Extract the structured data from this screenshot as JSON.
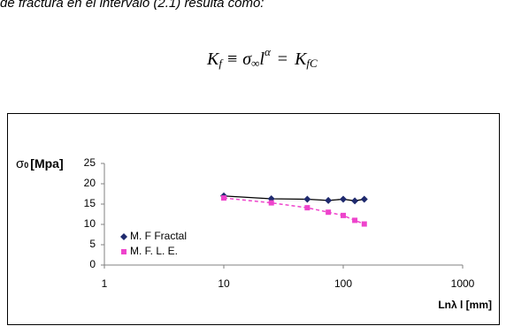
{
  "text": "de fractura en el intervalo (2.1) resulta como:",
  "equation": {
    "lhs": "K",
    "lhs_sub": "f",
    "op1": "≡",
    "sigma": "σ",
    "sigma_sub": "∞",
    "l": "l",
    "l_sup": "α",
    "op2": "=",
    "rhs": "K",
    "rhs_sub": "fC"
  },
  "chart_data": {
    "type": "scatter",
    "y_label": {
      "symbol": "σ",
      "sub": "0",
      "unit": "[Mpa]"
    },
    "x_label": "Lnλ l [mm]",
    "xscale": "log",
    "xlim": [
      1,
      1000
    ],
    "xticks": [
      1,
      10,
      100,
      1000
    ],
    "ylim": [
      0,
      25
    ],
    "yticks": [
      0,
      5,
      10,
      15,
      20,
      25
    ],
    "legend": "lower left",
    "series": [
      {
        "name": "M. F Fractal",
        "color": "#1f2a6e",
        "marker": "diamond",
        "line": "solid",
        "line_color": "#000000",
        "x": [
          10,
          25,
          50,
          75,
          100,
          125,
          150
        ],
        "values": [
          17,
          16.3,
          16.2,
          15.9,
          16.2,
          15.8,
          16.2
        ]
      },
      {
        "name": "M. F. L. E.",
        "color": "#ee44cc",
        "marker": "square",
        "line": "dashed",
        "line_color": "#ee44cc",
        "x": [
          10,
          25,
          50,
          75,
          100,
          125,
          150
        ],
        "values": [
          16.5,
          15.3,
          14.1,
          13,
          12.2,
          11,
          10.1
        ]
      }
    ]
  }
}
